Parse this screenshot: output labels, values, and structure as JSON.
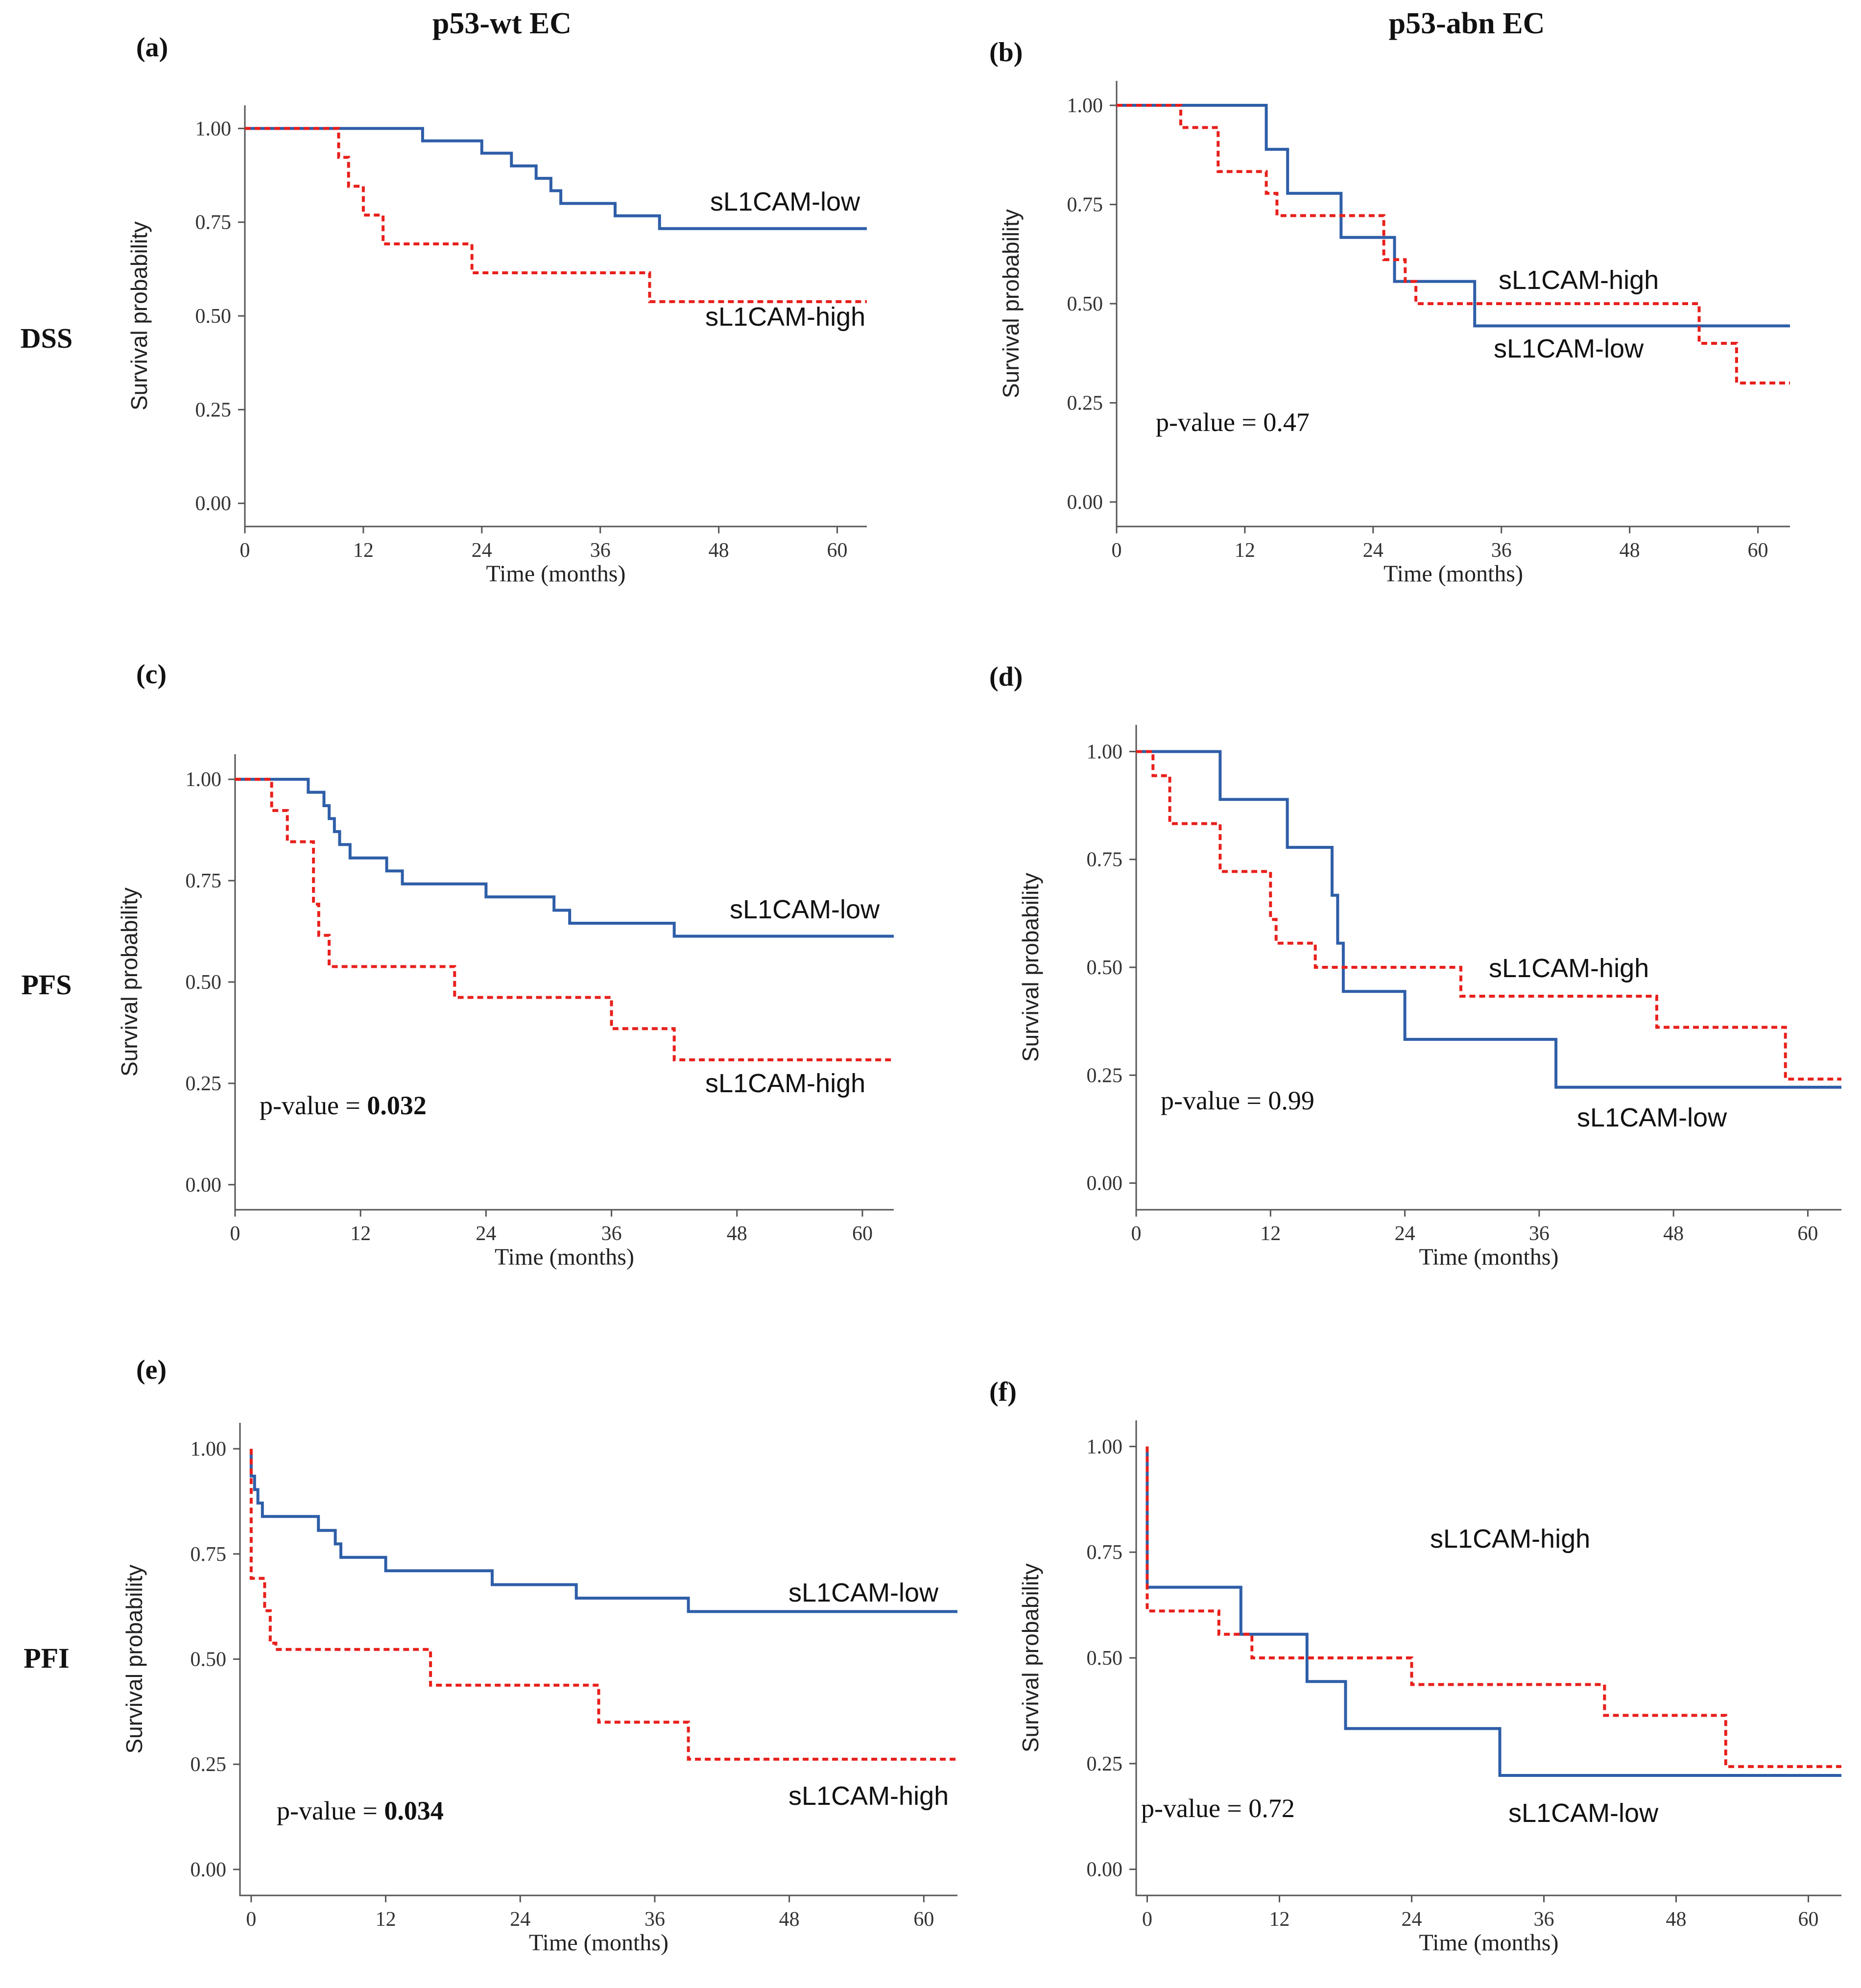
{
  "column_titles": [
    "p53-wt EC",
    "p53-abn EC"
  ],
  "row_labels": [
    "DSS",
    "PFS",
    "PFI"
  ],
  "colors": {
    "low": "#2e5ea8",
    "high": "#e8201c"
  },
  "chart_data": [
    {
      "type": "line",
      "panel": "(a)",
      "title": "",
      "xlabel": "Time (months)",
      "ylabel": "Survival probability",
      "xlim": [
        0,
        63
      ],
      "ylim": [
        0,
        1
      ],
      "xticks": [
        "0",
        "12",
        "24",
        "36",
        "48",
        "60"
      ],
      "yticks": [
        "0.00",
        "0.25",
        "0.50",
        "0.75",
        "1.00"
      ],
      "pvalue_label": "",
      "pvalue": "",
      "series": [
        {
          "name": "sL1CAM-low",
          "style": "solid",
          "x": [
            0,
            18,
            18,
            24,
            24,
            27,
            27,
            29.5,
            29.5,
            31,
            31,
            32,
            32,
            33,
            33,
            37.5,
            37.5,
            42,
            42,
            63
          ],
          "y": [
            1,
            1,
            0.967,
            0.967,
            0.934,
            0.934,
            0.9,
            0.9,
            0.867,
            0.867,
            0.834,
            0.834,
            0.8,
            0.8,
            0.8,
            0.8,
            0.767,
            0.767,
            0.733,
            0.733
          ]
        },
        {
          "name": "sL1CAM-high",
          "style": "dashed",
          "x": [
            0,
            9.5,
            9.5,
            10.5,
            10.5,
            12,
            12,
            14,
            14,
            23,
            23,
            41,
            41,
            63
          ],
          "y": [
            1,
            1,
            0.923,
            0.923,
            0.846,
            0.846,
            0.769,
            0.769,
            0.692,
            0.692,
            0.615,
            0.615,
            0.538,
            0.538
          ]
        }
      ],
      "legend": [
        {
          "label": "sL1CAM-low"
        },
        {
          "label": "sL1CAM-high"
        }
      ]
    },
    {
      "type": "line",
      "panel": "(b)",
      "title": "",
      "xlabel": "Time (months)",
      "ylabel": "Survival probability",
      "xlim": [
        0,
        63
      ],
      "ylim": [
        0,
        1
      ],
      "xticks": [
        "0",
        "12",
        "24",
        "36",
        "48",
        "60"
      ],
      "yticks": [
        "0.00",
        "0.25",
        "0.50",
        "0.75",
        "1.00"
      ],
      "pvalue_label": "p-value = ",
      "pvalue": "0.47",
      "series": [
        {
          "name": "sL1CAM-low",
          "style": "solid",
          "x": [
            0,
            14,
            14,
            16,
            16,
            21,
            21,
            26,
            26,
            26.5,
            26.5,
            33.5,
            33.5,
            63
          ],
          "y": [
            1,
            1,
            0.889,
            0.889,
            0.778,
            0.778,
            0.667,
            0.667,
            0.556,
            0.556,
            0.556,
            0.556,
            0.444,
            0.444
          ]
        },
        {
          "name": "sL1CAM-high",
          "style": "dashed",
          "x": [
            0,
            6,
            6,
            9.5,
            9.5,
            14,
            14,
            15,
            15,
            25,
            25,
            27,
            27,
            28,
            28,
            54.5,
            54.5,
            58,
            58,
            63
          ],
          "y": [
            1,
            1,
            0.944,
            0.944,
            0.833,
            0.833,
            0.778,
            0.778,
            0.722,
            0.722,
            0.611,
            0.611,
            0.556,
            0.556,
            0.5,
            0.5,
            0.4,
            0.4,
            0.3,
            0.3
          ]
        }
      ],
      "legend": [
        {
          "label": "sL1CAM-high"
        },
        {
          "label": "sL1CAM-low"
        }
      ]
    },
    {
      "type": "line",
      "panel": "(c)",
      "title": "",
      "xlabel": "Time (months)",
      "ylabel": "Survival probability",
      "xlim": [
        0,
        63
      ],
      "ylim": [
        0,
        1
      ],
      "xticks": [
        "0",
        "12",
        "24",
        "36",
        "48",
        "60"
      ],
      "yticks": [
        "0.00",
        "0.25",
        "0.50",
        "0.75",
        "1.00"
      ],
      "pvalue_label": "p-value = ",
      "pvalue": "0.032",
      "series": [
        {
          "name": "sL1CAM-low",
          "style": "solid",
          "x": [
            0,
            7,
            7,
            8.5,
            8.5,
            9,
            9,
            9.5,
            9.5,
            10,
            10,
            11,
            11,
            14.5,
            14.5,
            16,
            16,
            21.5,
            21.5,
            24,
            24,
            30.5,
            30.5,
            32,
            32,
            42,
            42,
            63
          ],
          "y": [
            1,
            1,
            0.968,
            0.968,
            0.935,
            0.935,
            0.903,
            0.903,
            0.871,
            0.871,
            0.839,
            0.839,
            0.806,
            0.806,
            0.774,
            0.774,
            0.742,
            0.742,
            0.742,
            0.742,
            0.71,
            0.71,
            0.677,
            0.677,
            0.645,
            0.645,
            0.613,
            0.613
          ]
        },
        {
          "name": "sL1CAM-high",
          "style": "dashed",
          "x": [
            0,
            3.5,
            3.5,
            5,
            5,
            7.5,
            7.5,
            8,
            8,
            9,
            9,
            21,
            21,
            36,
            36,
            42,
            42,
            63
          ],
          "y": [
            1,
            1,
            0.923,
            0.923,
            0.846,
            0.846,
            0.692,
            0.692,
            0.615,
            0.615,
            0.538,
            0.538,
            0.462,
            0.462,
            0.385,
            0.385,
            0.308,
            0.308
          ]
        }
      ],
      "legend": [
        {
          "label": "sL1CAM-low"
        },
        {
          "label": "sL1CAM-high"
        }
      ]
    },
    {
      "type": "line",
      "panel": "(d)",
      "title": "",
      "xlabel": "Time (months)",
      "ylabel": "Survival probability",
      "xlim": [
        0,
        63
      ],
      "ylim": [
        0,
        1
      ],
      "xticks": [
        "0",
        "12",
        "24",
        "36",
        "48",
        "60"
      ],
      "yticks": [
        "0.00",
        "0.25",
        "0.50",
        "0.75",
        "1.00"
      ],
      "pvalue_label": "p-value = ",
      "pvalue": "0.99",
      "series": [
        {
          "name": "sL1CAM-low",
          "style": "solid",
          "x": [
            0,
            7.5,
            7.5,
            13.5,
            13.5,
            17.5,
            17.5,
            18,
            18,
            18.5,
            18.5,
            24,
            24,
            37.5,
            37.5,
            63
          ],
          "y": [
            1,
            1,
            0.889,
            0.889,
            0.778,
            0.778,
            0.667,
            0.667,
            0.556,
            0.556,
            0.444,
            0.444,
            0.333,
            0.333,
            0.222,
            0.222
          ]
        },
        {
          "name": "sL1CAM-high",
          "style": "dashed",
          "x": [
            0,
            1.5,
            1.5,
            3,
            3,
            7.5,
            7.5,
            12,
            12,
            12.5,
            12.5,
            13.5,
            13.5,
            16,
            16,
            29,
            29,
            46.5,
            46.5,
            58,
            58,
            63
          ],
          "y": [
            1,
            1,
            0.944,
            0.944,
            0.833,
            0.833,
            0.722,
            0.722,
            0.611,
            0.611,
            0.556,
            0.556,
            0.556,
            0.556,
            0.5,
            0.5,
            0.433,
            0.433,
            0.361,
            0.361,
            0.241,
            0.241
          ]
        }
      ],
      "legend": [
        {
          "label": "sL1CAM-high"
        },
        {
          "label": "sL1CAM-low"
        }
      ]
    },
    {
      "type": "line",
      "panel": "(e)",
      "title": "",
      "xlabel": "Time (months)",
      "ylabel": "Survival probability",
      "xlim": [
        -1,
        63
      ],
      "ylim": [
        0,
        1
      ],
      "xticks": [
        "0",
        "12",
        "24",
        "36",
        "48",
        "60"
      ],
      "yticks": [
        "0.00",
        "0.25",
        "0.50",
        "0.75",
        "1.00"
      ],
      "pvalue_label": "p-value = ",
      "pvalue": "0.034",
      "series": [
        {
          "name": "sL1CAM-low",
          "style": "solid",
          "x": [
            0,
            0,
            0.3,
            0.3,
            0.6,
            0.6,
            1,
            1,
            6,
            6,
            7.5,
            7.5,
            8,
            8,
            12,
            12,
            21.5,
            21.5,
            29,
            29,
            39,
            39,
            63
          ],
          "y": [
            1,
            0.935,
            0.935,
            0.903,
            0.903,
            0.871,
            0.871,
            0.839,
            0.839,
            0.806,
            0.806,
            0.774,
            0.774,
            0.742,
            0.742,
            0.71,
            0.71,
            0.677,
            0.677,
            0.645,
            0.645,
            0.613,
            0.613
          ]
        },
        {
          "name": "sL1CAM-high",
          "style": "dashed",
          "x": [
            0,
            0,
            1.2,
            1.2,
            1.7,
            1.7,
            2.2,
            2.2,
            16,
            16,
            31,
            31,
            39,
            39,
            63
          ],
          "y": [
            1,
            0.692,
            0.692,
            0.615,
            0.615,
            0.538,
            0.538,
            0.523,
            0.523,
            0.438,
            0.438,
            0.35,
            0.35,
            0.262,
            0.262
          ]
        }
      ],
      "legend": [
        {
          "label": "sL1CAM-low"
        },
        {
          "label": "sL1CAM-high"
        }
      ]
    },
    {
      "type": "line",
      "panel": "(f)",
      "title": "",
      "xlabel": "Time (months)",
      "ylabel": "Survival probability",
      "xlim": [
        -1,
        63
      ],
      "ylim": [
        0,
        1
      ],
      "xticks": [
        "0",
        "12",
        "24",
        "36",
        "48",
        "60"
      ],
      "yticks": [
        "0.00",
        "0.25",
        "0.50",
        "0.75",
        "1.00"
      ],
      "pvalue_label": "p-value = ",
      "pvalue": "0.72",
      "series": [
        {
          "name": "sL1CAM-low",
          "style": "solid",
          "x": [
            0,
            0,
            8.5,
            8.5,
            14.5,
            14.5,
            18,
            18,
            32,
            32,
            63
          ],
          "y": [
            1,
            0.667,
            0.667,
            0.556,
            0.556,
            0.444,
            0.444,
            0.333,
            0.333,
            0.222,
            0.222
          ]
        },
        {
          "name": "sL1CAM-high",
          "style": "dashed",
          "x": [
            0,
            0,
            6.5,
            6.5,
            9.5,
            9.5,
            24,
            24,
            41.5,
            41.5,
            52.5,
            52.5,
            63
          ],
          "y": [
            1,
            0.611,
            0.611,
            0.556,
            0.556,
            0.5,
            0.5,
            0.437,
            0.437,
            0.364,
            0.364,
            0.243,
            0.243
          ]
        }
      ],
      "legend": [
        {
          "label": "sL1CAM-high"
        },
        {
          "label": "sL1CAM-low"
        }
      ]
    }
  ]
}
